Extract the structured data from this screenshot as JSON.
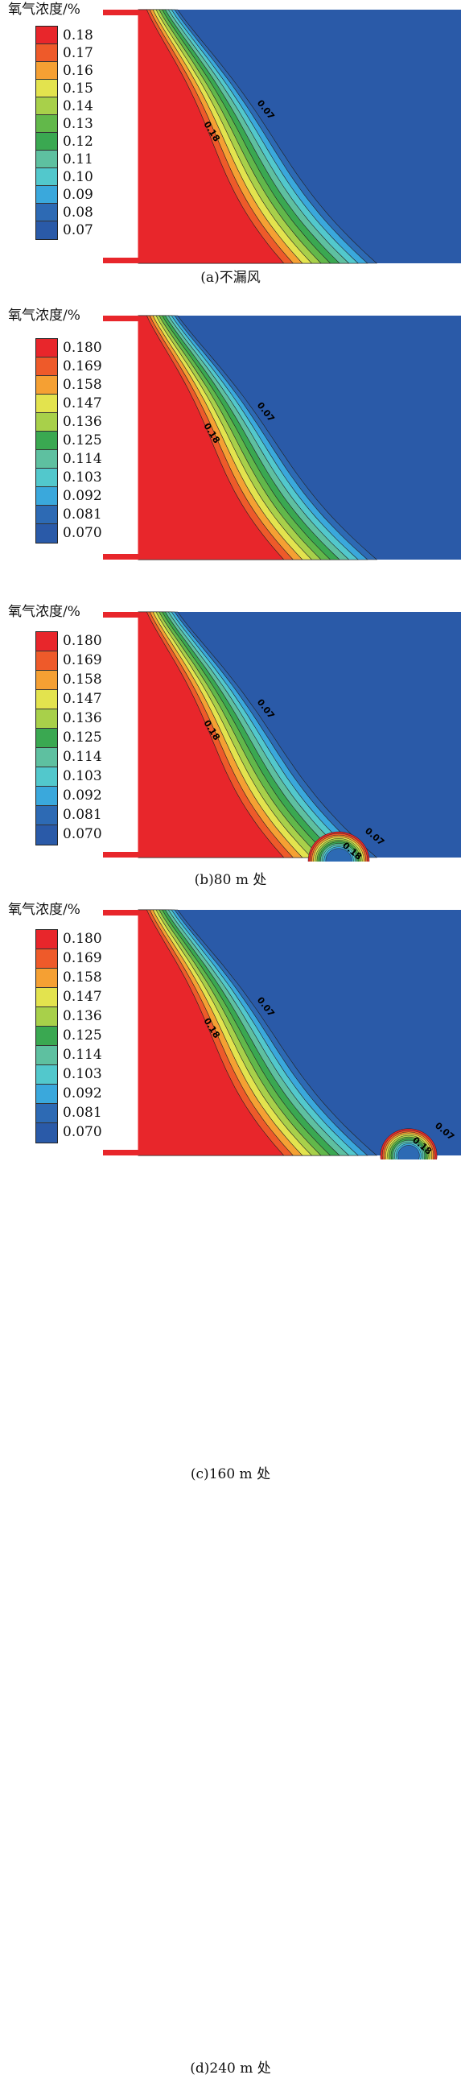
{
  "colors": [
    "#e8262b",
    "#ee5a2a",
    "#f5a033",
    "#e3e34e",
    "#a8d04a",
    "#62b84a",
    "#3aa851",
    "#5ec0a0",
    "#52c8cc",
    "#3aa8dc",
    "#2d6ab4",
    "#2a5aa8"
  ],
  "line_labels": [
    "0.18",
    "0.07"
  ],
  "panels": [
    {
      "legend_title": "氧气浓度/%",
      "legend_values": [
        "0.18",
        "0.17",
        "0.16",
        "0.15",
        "0.14",
        "0.13",
        "0.12",
        "0.11",
        "0.10",
        "0.09",
        "0.08",
        "0.07"
      ],
      "caption": "(a)不漏风"
    },
    {
      "legend_title": "氧气浓度/%",
      "legend_values": [
        "0.180",
        "0.169",
        "0.158",
        "0.147",
        "0.136",
        "0.125",
        "0.114",
        "0.103",
        "0.092",
        "0.081",
        "0.070"
      ],
      "caption": "(b)80 m 处"
    },
    {
      "legend_title": "氧气浓度/%",
      "legend_values": [
        "0.180",
        "0.169",
        "0.158",
        "0.147",
        "0.136",
        "0.125",
        "0.114",
        "0.103",
        "0.092",
        "0.081",
        "0.070"
      ],
      "caption": "(c)160 m 处"
    },
    {
      "legend_title": "氧气浓度/%",
      "legend_values": [
        "0.180",
        "0.169",
        "0.158",
        "0.147",
        "0.136",
        "0.125",
        "0.114",
        "0.103",
        "0.092",
        "0.081",
        "0.070"
      ],
      "caption": "(d)240 m 处"
    }
  ]
}
